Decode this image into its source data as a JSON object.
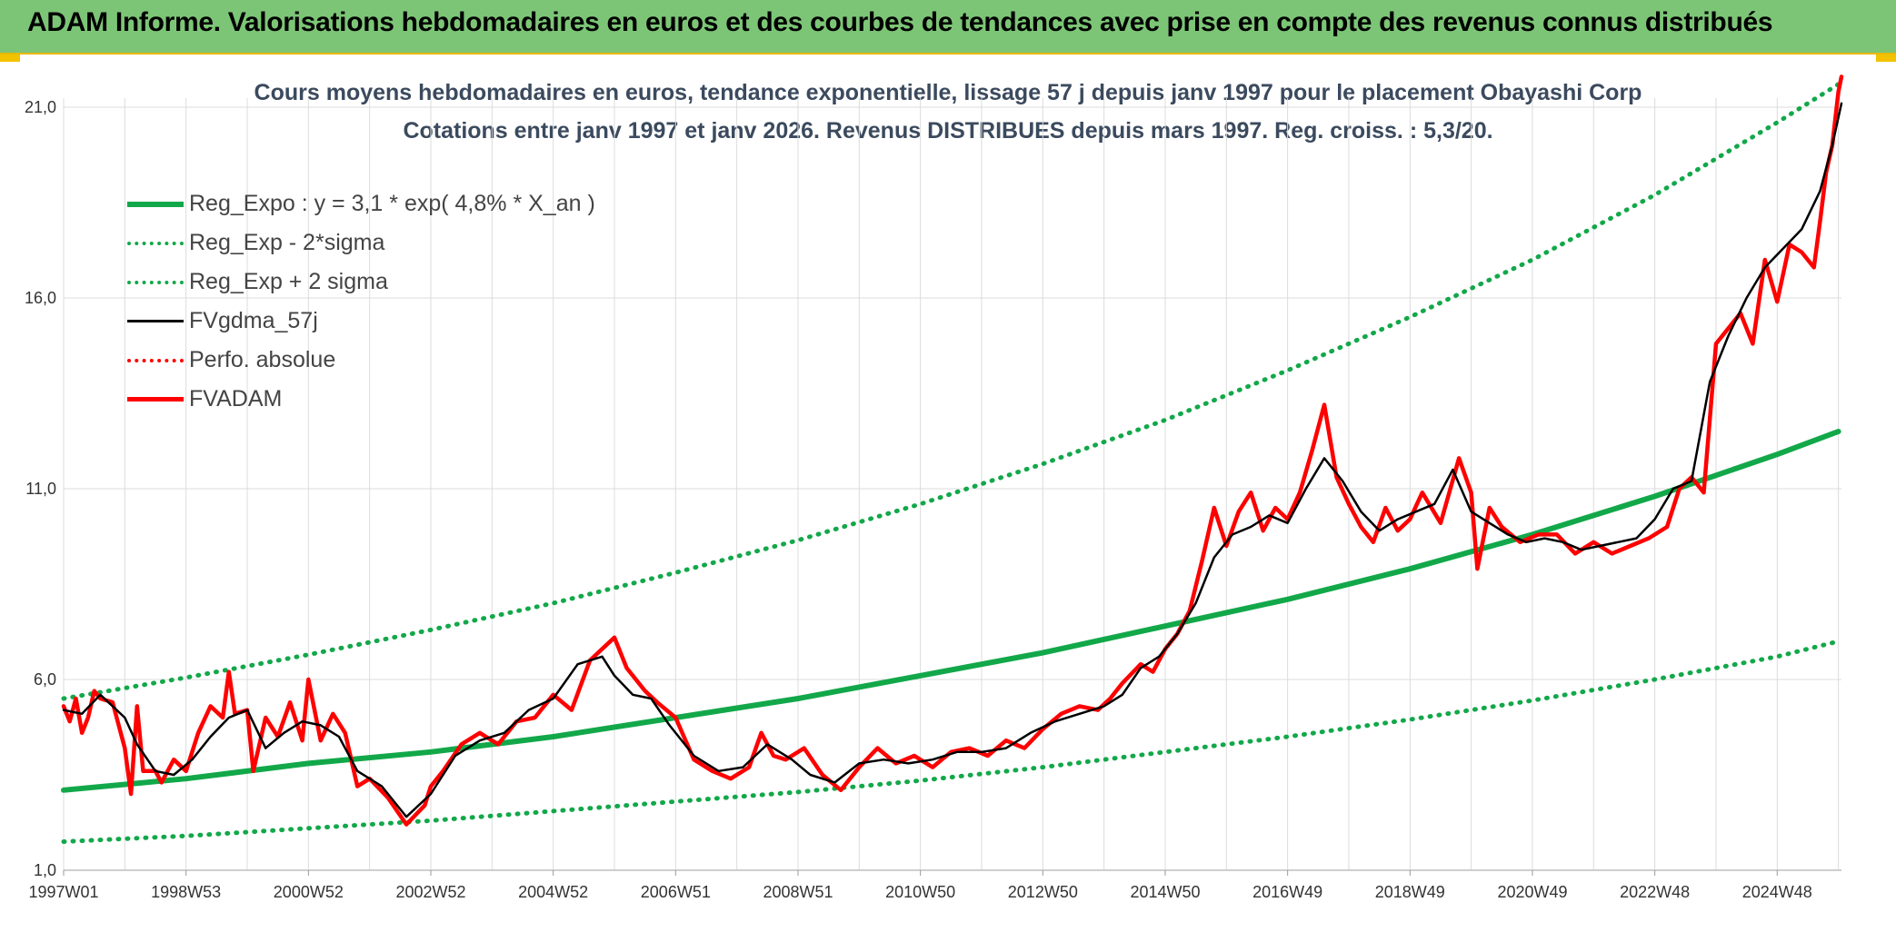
{
  "header": {
    "title": "ADAM Informe. Valorisations hebdomadaires en euros et des courbes de tendances avec prise en compte des revenus connus distribués"
  },
  "chart_data": {
    "type": "line",
    "title": "Cours moyens hebdomadaires en euros, tendance exponentielle, lissage 57 j depuis janv 1997 pour le placement Obayashi Corp",
    "subtitle": "Cotations entre janv 1997 et janv 2026. Revenus DISTRIBUES depuis mars 1997. Reg. croiss. : 5,3/20.",
    "xlabel": "",
    "ylabel": "",
    "ylim": [
      1.0,
      21.0
    ],
    "y_ticks": [
      "1,0",
      "6,0",
      "11,0",
      "16,0",
      "21,0"
    ],
    "y_tick_values": [
      1,
      6,
      11,
      16,
      21
    ],
    "x_range": [
      1997.0,
      2026.05
    ],
    "x_ticks": [
      "1997W01",
      "1998W53",
      "2000W52",
      "2002W52",
      "2004W52",
      "2006W51",
      "2008W51",
      "2010W50",
      "2012W50",
      "2014W50",
      "2016W49",
      "2018W49",
      "2020W49",
      "2022W48",
      "2024W48"
    ],
    "x_tick_years": [
      1997.0,
      1999.0,
      2001.0,
      2003.0,
      2005.0,
      2007.0,
      2009.0,
      2011.0,
      2013.0,
      2015.0,
      2017.0,
      2019.0,
      2021.0,
      2023.0,
      2025.0
    ],
    "grid": true,
    "legend_position": "top-left",
    "series": [
      {
        "name": "Reg_Expo : y = 3,1 * exp( 4,8% *  X_an )",
        "color": "#12a84a",
        "style": "solid",
        "x": [
          1997,
          1999,
          2001,
          2003,
          2005,
          2007,
          2009,
          2011,
          2013,
          2015,
          2017,
          2019,
          2021,
          2023,
          2025,
          2026
        ],
        "values": [
          3.1,
          3.4,
          3.8,
          4.1,
          4.5,
          5.0,
          5.5,
          6.1,
          6.7,
          7.4,
          8.1,
          8.9,
          9.8,
          10.8,
          11.9,
          12.5
        ]
      },
      {
        "name": "Reg_Exp - 2*sigma",
        "color": "#12a84a",
        "style": "dotted",
        "x": [
          1997,
          1999,
          2001,
          2003,
          2005,
          2007,
          2009,
          2011,
          2013,
          2015,
          2017,
          2019,
          2021,
          2023,
          2025,
          2026
        ],
        "values": [
          1.75,
          1.9,
          2.1,
          2.3,
          2.55,
          2.8,
          3.05,
          3.35,
          3.7,
          4.1,
          4.5,
          4.95,
          5.45,
          6.0,
          6.6,
          7.0
        ]
      },
      {
        "name": "Reg_Exp + 2 sigma",
        "color": "#12a84a",
        "style": "dotted",
        "x": [
          1997,
          1999,
          2001,
          2003,
          2005,
          2007,
          2009,
          2011,
          2013,
          2015,
          2017,
          2019,
          2021,
          2023,
          2025,
          2026
        ],
        "values": [
          5.5,
          6.05,
          6.65,
          7.3,
          8.0,
          8.8,
          9.65,
          10.6,
          11.65,
          12.8,
          14.1,
          15.5,
          17.0,
          18.7,
          20.6,
          21.6
        ]
      },
      {
        "name": "FVgdma_57j",
        "color": "#000000",
        "style": "solid",
        "x": [
          1997.0,
          1997.3,
          1997.6,
          1998.0,
          1998.2,
          1998.5,
          1998.8,
          1999.1,
          1999.4,
          1999.7,
          2000.0,
          2000.3,
          2000.6,
          2000.9,
          2001.2,
          2001.5,
          2001.8,
          2002.2,
          2002.6,
          2003.0,
          2003.4,
          2003.8,
          2004.2,
          2004.6,
          2005.0,
          2005.4,
          2005.8,
          2006.0,
          2006.3,
          2006.6,
          2006.9,
          2007.3,
          2007.7,
          2008.1,
          2008.5,
          2008.9,
          2009.2,
          2009.6,
          2010.0,
          2010.4,
          2010.8,
          2011.2,
          2011.6,
          2012.0,
          2012.4,
          2012.8,
          2013.2,
          2013.6,
          2014.0,
          2014.3,
          2014.6,
          2014.9,
          2015.2,
          2015.5,
          2015.8,
          2016.1,
          2016.4,
          2016.7,
          2017.0,
          2017.3,
          2017.6,
          2017.9,
          2018.2,
          2018.5,
          2018.8,
          2019.1,
          2019.4,
          2019.7,
          2020.0,
          2020.3,
          2020.6,
          2020.9,
          2021.2,
          2021.5,
          2021.8,
          2022.1,
          2022.4,
          2022.7,
          2023.0,
          2023.3,
          2023.6,
          2023.9,
          2024.2,
          2024.5,
          2024.8,
          2025.1,
          2025.4,
          2025.7,
          2025.9,
          2026.05
        ],
        "values": [
          5.2,
          5.1,
          5.6,
          5.0,
          4.3,
          3.6,
          3.5,
          3.9,
          4.5,
          5.0,
          5.2,
          4.2,
          4.6,
          4.9,
          4.8,
          4.5,
          3.6,
          3.2,
          2.4,
          3.0,
          4.0,
          4.4,
          4.6,
          5.2,
          5.5,
          6.4,
          6.6,
          6.1,
          5.6,
          5.5,
          4.8,
          4.0,
          3.6,
          3.7,
          4.3,
          3.9,
          3.5,
          3.3,
          3.8,
          3.9,
          3.8,
          3.9,
          4.1,
          4.1,
          4.2,
          4.6,
          4.9,
          5.1,
          5.3,
          5.6,
          6.3,
          6.6,
          7.2,
          8.0,
          9.2,
          9.8,
          10.0,
          10.3,
          10.1,
          11.0,
          11.8,
          11.2,
          10.4,
          9.9,
          10.2,
          10.4,
          10.6,
          11.5,
          10.4,
          10.1,
          9.8,
          9.6,
          9.7,
          9.6,
          9.4,
          9.5,
          9.6,
          9.7,
          10.2,
          11.0,
          11.2,
          13.8,
          15.0,
          16.0,
          16.8,
          17.3,
          17.8,
          18.8,
          20.0,
          21.1
        ]
      },
      {
        "name": "Perfo. absolue",
        "color": "#ff0000",
        "style": "dotted",
        "x": [],
        "values": []
      },
      {
        "name": "FVADAM",
        "color": "#ff0000",
        "style": "solid",
        "x": [
          1997.0,
          1997.1,
          1997.2,
          1997.3,
          1997.4,
          1997.5,
          1997.6,
          1997.8,
          1998.0,
          1998.1,
          1998.2,
          1998.3,
          1998.5,
          1998.6,
          1998.8,
          1999.0,
          1999.2,
          1999.4,
          1999.6,
          1999.7,
          1999.8,
          2000.0,
          2000.1,
          2000.3,
          2000.5,
          2000.7,
          2000.9,
          2001.0,
          2001.2,
          2001.4,
          2001.6,
          2001.8,
          2002.0,
          2002.3,
          2002.6,
          2002.9,
          2003.0,
          2003.2,
          2003.5,
          2003.8,
          2004.1,
          2004.4,
          2004.7,
          2005.0,
          2005.3,
          2005.6,
          2005.8,
          2006.0,
          2006.2,
          2006.5,
          2006.7,
          2007.0,
          2007.3,
          2007.6,
          2007.9,
          2008.2,
          2008.4,
          2008.6,
          2008.8,
          2009.1,
          2009.4,
          2009.7,
          2010.0,
          2010.3,
          2010.6,
          2010.9,
          2011.2,
          2011.5,
          2011.8,
          2012.1,
          2012.4,
          2012.7,
          2013.0,
          2013.3,
          2013.6,
          2013.9,
          2014.1,
          2014.3,
          2014.6,
          2014.8,
          2015.0,
          2015.2,
          2015.4,
          2015.6,
          2015.8,
          2016.0,
          2016.2,
          2016.4,
          2016.6,
          2016.8,
          2017.0,
          2017.2,
          2017.4,
          2017.6,
          2017.8,
          2018.0,
          2018.2,
          2018.4,
          2018.6,
          2018.8,
          2019.0,
          2019.2,
          2019.5,
          2019.8,
          2020.0,
          2020.1,
          2020.3,
          2020.5,
          2020.8,
          2021.1,
          2021.4,
          2021.7,
          2022.0,
          2022.3,
          2022.6,
          2022.9,
          2023.2,
          2023.4,
          2023.6,
          2023.8,
          2024.0,
          2024.2,
          2024.4,
          2024.6,
          2024.8,
          2025.0,
          2025.2,
          2025.4,
          2025.6,
          2025.7,
          2025.8,
          2025.9,
          2026.0,
          2026.05
        ],
        "values": [
          5.3,
          4.9,
          5.5,
          4.6,
          5.0,
          5.7,
          5.5,
          5.4,
          4.2,
          3.0,
          5.3,
          3.6,
          3.6,
          3.3,
          3.9,
          3.6,
          4.6,
          5.3,
          5.0,
          6.2,
          5.1,
          5.2,
          3.6,
          5.0,
          4.5,
          5.4,
          4.4,
          6.0,
          4.4,
          5.1,
          4.6,
          3.2,
          3.4,
          2.9,
          2.2,
          2.7,
          3.2,
          3.6,
          4.3,
          4.6,
          4.3,
          4.9,
          5.0,
          5.6,
          5.2,
          6.5,
          6.8,
          7.1,
          6.3,
          5.7,
          5.4,
          5.0,
          3.9,
          3.6,
          3.4,
          3.7,
          4.6,
          4.0,
          3.9,
          4.2,
          3.5,
          3.1,
          3.7,
          4.2,
          3.8,
          4.0,
          3.7,
          4.1,
          4.2,
          4.0,
          4.4,
          4.2,
          4.7,
          5.1,
          5.3,
          5.2,
          5.5,
          5.9,
          6.4,
          6.2,
          6.8,
          7.2,
          7.8,
          9.1,
          10.5,
          9.5,
          10.4,
          10.9,
          9.9,
          10.5,
          10.2,
          10.9,
          12.0,
          13.2,
          11.3,
          10.6,
          10.0,
          9.6,
          10.5,
          9.9,
          10.2,
          10.9,
          10.1,
          11.8,
          10.9,
          8.9,
          10.5,
          10.0,
          9.6,
          9.8,
          9.8,
          9.3,
          9.6,
          9.3,
          9.5,
          9.7,
          10.0,
          11.0,
          11.3,
          10.9,
          14.8,
          15.2,
          15.6,
          14.8,
          17.0,
          15.9,
          17.4,
          17.2,
          16.8,
          18.0,
          19.3,
          20.0,
          21.4,
          21.8
        ]
      }
    ]
  }
}
